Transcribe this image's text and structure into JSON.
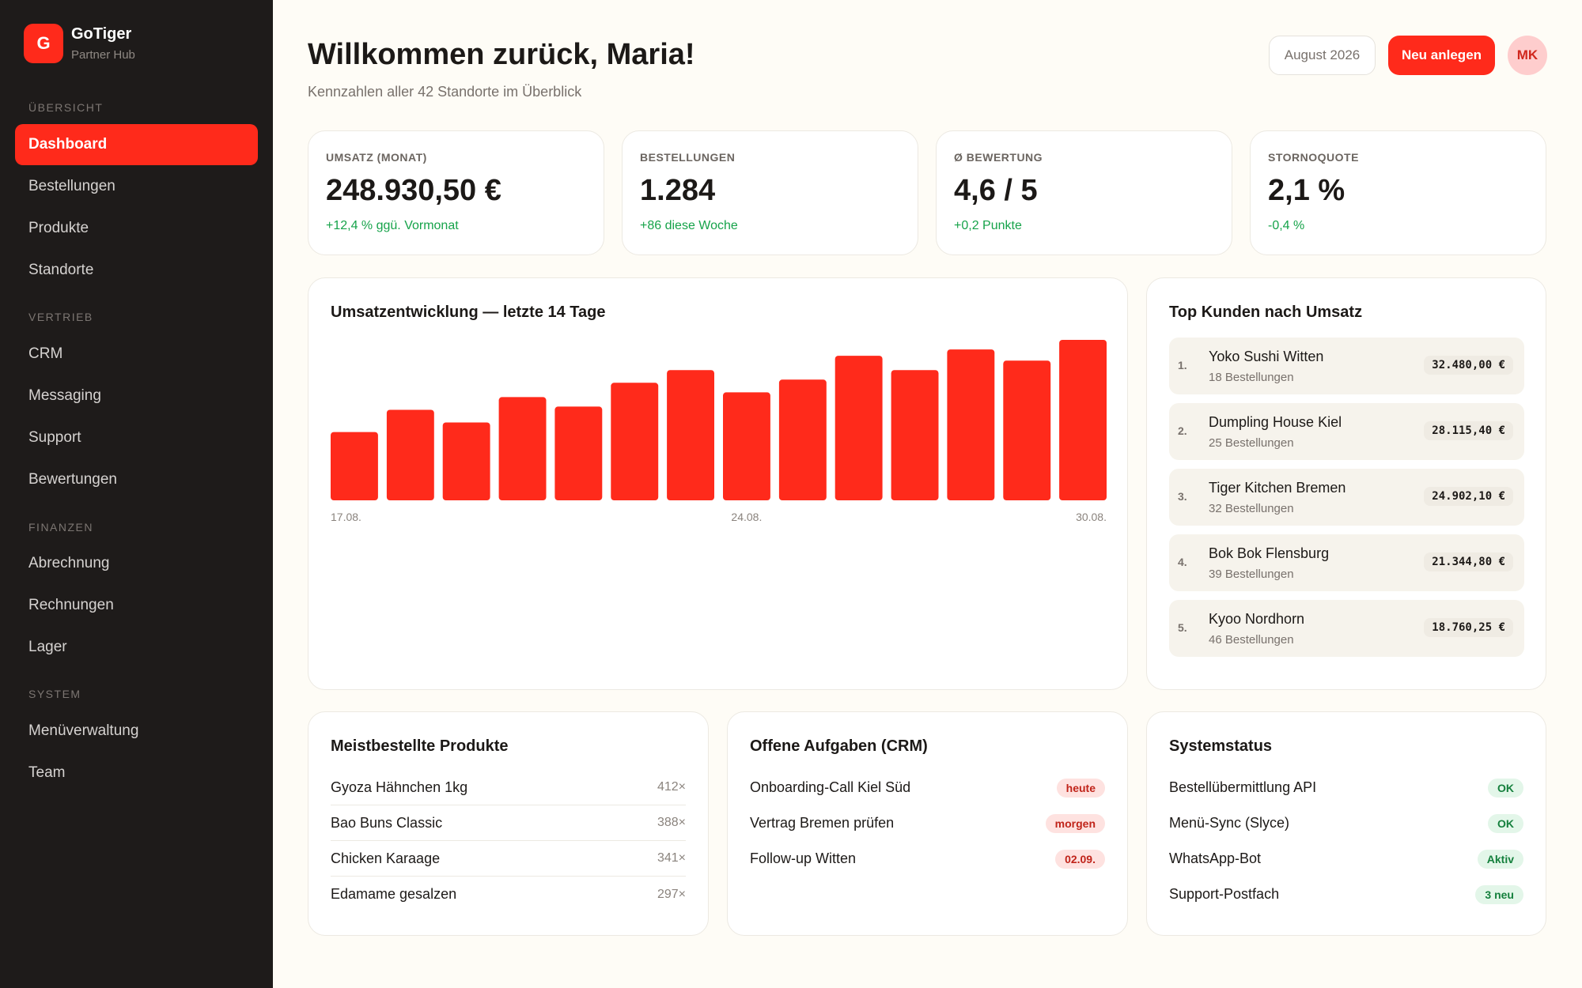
{
  "brand": {
    "logo_letter": "G",
    "name": "GoTiger",
    "subtitle": "Partner Hub"
  },
  "sidebar": {
    "sections": [
      {
        "title": "ÜBERSICHT",
        "items": [
          "Dashboard",
          "Bestellungen",
          "Produkte",
          "Standorte"
        ]
      },
      {
        "title": "VERTRIEB",
        "items": [
          "CRM",
          "Messaging",
          "Support",
          "Bewertungen"
        ]
      },
      {
        "title": "FINANZEN",
        "items": [
          "Abrechnung",
          "Rechnungen",
          "Lager"
        ]
      },
      {
        "title": "SYSTEM",
        "items": [
          "Menüverwaltung",
          "Team"
        ]
      }
    ],
    "active": "Dashboard"
  },
  "header": {
    "title": "Willkommen zurück, Maria!",
    "subtitle": "Kennzahlen aller 42 Standorte im Überblick",
    "period": "August 2026",
    "new_button": "Neu anlegen",
    "avatar_initials": "MK"
  },
  "kpis": [
    {
      "label": "UMSATZ (MONAT)",
      "value": "248.930,50 €",
      "delta": "+12,4 % ggü. Vormonat"
    },
    {
      "label": "BESTELLUNGEN",
      "value": "1.284",
      "delta": "+86 diese Woche"
    },
    {
      "label": "Ø BEWERTUNG",
      "value": "4,6 / 5",
      "delta": "+0,2 Punkte"
    },
    {
      "label": "STORNOQUOTE",
      "value": "2,1 %",
      "delta": "-0,4 %"
    }
  ],
  "revenue_chart": {
    "title": "Umsatzentwicklung — letzte 14 Tage",
    "bar_color": "#ff2a1b"
  },
  "chart_data": {
    "type": "bar",
    "title": "Umsatzentwicklung — letzte 14 Tage",
    "categories": [
      "17.08.",
      "18.08.",
      "19.08.",
      "20.08.",
      "21.08.",
      "22.08.",
      "23.08.",
      "24.08.",
      "25.08.",
      "26.08.",
      "27.08.",
      "28.08.",
      "29.08.",
      "30.08."
    ],
    "tick_labels": [
      "17.08.",
      "24.08.",
      "30.08."
    ],
    "values": [
      43,
      57,
      49,
      65,
      59,
      74,
      82,
      68,
      76,
      91,
      82,
      95,
      88,
      101
    ],
    "ylim": [
      0,
      105
    ],
    "grid": false,
    "legend": "none"
  },
  "top_customers": {
    "title": "Top Kunden nach Umsatz",
    "rows": [
      {
        "rank": "1.",
        "name": "Yoko Sushi Witten",
        "orders": "18 Bestellungen",
        "amount": "32.480,00 €"
      },
      {
        "rank": "2.",
        "name": "Dumpling House Kiel",
        "orders": "25 Bestellungen",
        "amount": "28.115,40 €"
      },
      {
        "rank": "3.",
        "name": "Tiger Kitchen Bremen",
        "orders": "32 Bestellungen",
        "amount": "24.902,10 €"
      },
      {
        "rank": "4.",
        "name": "Bok Bok Flensburg",
        "orders": "39 Bestellungen",
        "amount": "21.344,80 €"
      },
      {
        "rank": "5.",
        "name": "Kyoo Nordhorn",
        "orders": "46 Bestellungen",
        "amount": "18.760,25 €"
      }
    ]
  },
  "products": {
    "title": "Meistbestellte Produkte",
    "rows": [
      {
        "label": "Gyoza Hähnchen 1kg",
        "count": "412×"
      },
      {
        "label": "Bao Buns Classic",
        "count": "388×"
      },
      {
        "label": "Chicken Karaage",
        "count": "341×"
      },
      {
        "label": "Edamame gesalzen",
        "count": "297×"
      }
    ]
  },
  "tasks": {
    "title": "Offene Aufgaben (CRM)",
    "rows": [
      {
        "label": "Onboarding-Call Kiel Süd",
        "badge": "heute"
      },
      {
        "label": "Vertrag Bremen prüfen",
        "badge": "morgen"
      },
      {
        "label": "Follow-up Witten",
        "badge": "02.09."
      }
    ]
  },
  "system": {
    "title": "Systemstatus",
    "rows": [
      {
        "label": "Bestellübermittlung API",
        "badge": "OK"
      },
      {
        "label": "Menü-Sync (Slyce)",
        "badge": "OK"
      },
      {
        "label": "WhatsApp-Bot",
        "badge": "Aktiv"
      },
      {
        "label": "Support-Postfach",
        "badge": "3 neu"
      }
    ]
  }
}
